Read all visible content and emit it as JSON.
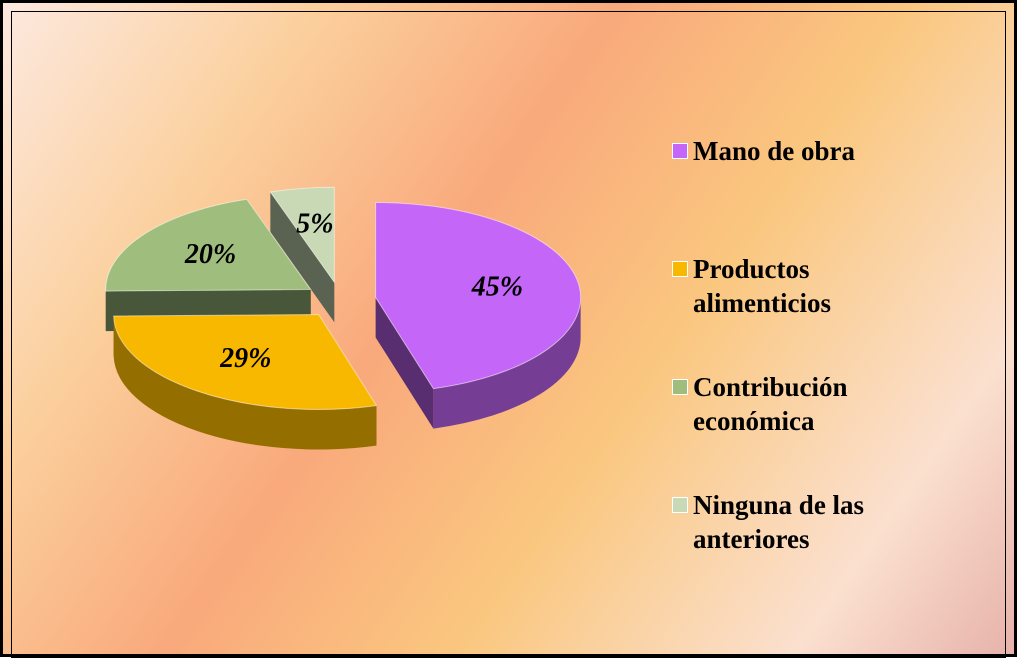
{
  "chart_data": {
    "type": "pie",
    "categories": [
      "Mano de obra",
      "Productos alimenticios",
      "Contribución económica",
      "Ninguna de las anteriores"
    ],
    "values": [
      45,
      29,
      20,
      5
    ],
    "value_labels": [
      "45%",
      "29%",
      "20%",
      "5%"
    ],
    "colors": [
      "#c466f8",
      "#f9b800",
      "#9fbe7e",
      "#c9d9b6"
    ],
    "legend": "right"
  }
}
